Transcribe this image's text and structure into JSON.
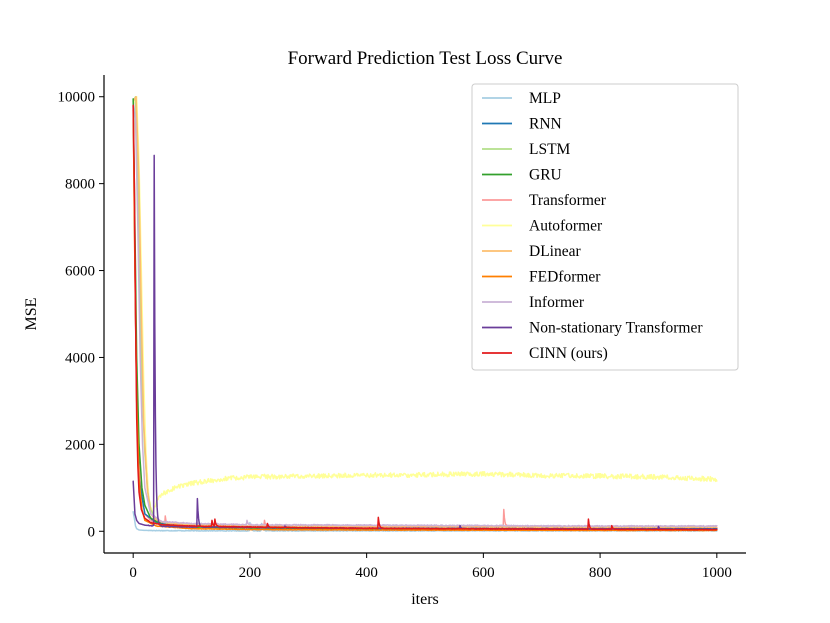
{
  "chart_data": {
    "type": "line",
    "title": "Forward Prediction Test Loss Curve",
    "xlabel": "iters",
    "ylabel": "MSE",
    "xlim": [
      -50,
      1050
    ],
    "ylim": [
      -500,
      10500
    ],
    "xticks": [
      0,
      200,
      400,
      600,
      800,
      1000
    ],
    "xtick_labels": [
      "0",
      "200",
      "400",
      "600",
      "800",
      "1000"
    ],
    "yticks": [
      0,
      2000,
      4000,
      6000,
      8000,
      10000
    ],
    "ytick_labels": [
      "0",
      "2000",
      "4000",
      "6000",
      "8000",
      "10000"
    ],
    "grid": false,
    "legend_position": "top-right",
    "series": [
      {
        "name": "MLP",
        "color": "#a6cee3",
        "points": [
          [
            0,
            450
          ],
          [
            2,
            300
          ],
          [
            4,
            120
          ],
          [
            6,
            60
          ],
          [
            10,
            30
          ],
          [
            20,
            20
          ],
          [
            50,
            15
          ],
          [
            100,
            12
          ],
          [
            200,
            10
          ],
          [
            300,
            10
          ],
          [
            400,
            10
          ],
          [
            500,
            10
          ],
          [
            600,
            10
          ],
          [
            700,
            10
          ],
          [
            800,
            10
          ],
          [
            900,
            10
          ],
          [
            1000,
            10
          ]
        ],
        "spikes": [
          [
            200,
            200
          ],
          [
            220,
            180
          ]
        ],
        "noise": 8,
        "z": 1
      },
      {
        "name": "RNN",
        "color": "#1f78b4",
        "points": [
          [
            0,
            9800
          ],
          [
            5,
            4000
          ],
          [
            10,
            1200
          ],
          [
            20,
            400
          ],
          [
            40,
            200
          ],
          [
            60,
            150
          ],
          [
            100,
            100
          ],
          [
            200,
            80
          ],
          [
            300,
            70
          ],
          [
            400,
            60
          ],
          [
            500,
            60
          ],
          [
            600,
            55
          ],
          [
            700,
            55
          ],
          [
            800,
            55
          ],
          [
            900,
            55
          ],
          [
            1000,
            55
          ]
        ],
        "spikes": [],
        "noise": 10,
        "z": 3
      },
      {
        "name": "LSTM",
        "color": "#b2df8a",
        "points": [
          [
            0,
            9900
          ],
          [
            4,
            10000
          ],
          [
            8,
            8000
          ],
          [
            12,
            5000
          ],
          [
            16,
            3000
          ],
          [
            20,
            1800
          ],
          [
            25,
            900
          ],
          [
            30,
            500
          ],
          [
            40,
            250
          ],
          [
            60,
            150
          ],
          [
            100,
            100
          ],
          [
            200,
            80
          ],
          [
            400,
            60
          ],
          [
            600,
            55
          ],
          [
            800,
            50
          ],
          [
            1000,
            50
          ]
        ],
        "spikes": [],
        "noise": 8,
        "z": 2
      },
      {
        "name": "GRU",
        "color": "#33a02c",
        "points": [
          [
            0,
            9950
          ],
          [
            3,
            7000
          ],
          [
            6,
            4000
          ],
          [
            10,
            2000
          ],
          [
            15,
            1000
          ],
          [
            20,
            600
          ],
          [
            30,
            300
          ],
          [
            50,
            150
          ],
          [
            100,
            100
          ],
          [
            200,
            80
          ],
          [
            400,
            60
          ],
          [
            600,
            55
          ],
          [
            800,
            50
          ],
          [
            1000,
            50
          ]
        ],
        "spikes": [],
        "noise": 8,
        "z": 3
      },
      {
        "name": "Transformer",
        "color": "#fb9a99",
        "points": [
          [
            0,
            9800
          ],
          [
            3,
            6000
          ],
          [
            6,
            3000
          ],
          [
            10,
            1500
          ],
          [
            15,
            800
          ],
          [
            20,
            400
          ],
          [
            30,
            250
          ],
          [
            40,
            200
          ],
          [
            60,
            150
          ],
          [
            100,
            140
          ],
          [
            200,
            120
          ],
          [
            400,
            110
          ],
          [
            600,
            110
          ],
          [
            800,
            100
          ],
          [
            1000,
            100
          ]
        ],
        "spikes": [
          [
            55,
            350
          ],
          [
            225,
            250
          ],
          [
            635,
            500
          ]
        ],
        "noise": 18,
        "z": 2
      },
      {
        "name": "Autoformer",
        "color": "#ffff99",
        "points": [
          [
            0,
            9800
          ],
          [
            6,
            10000
          ],
          [
            10,
            8500
          ],
          [
            14,
            6000
          ],
          [
            18,
            3500
          ],
          [
            22,
            1800
          ],
          [
            26,
            900
          ],
          [
            30,
            500
          ],
          [
            34,
            450
          ],
          [
            40,
            700
          ],
          [
            50,
            850
          ],
          [
            70,
            1000
          ],
          [
            100,
            1100
          ],
          [
            150,
            1200
          ],
          [
            200,
            1250
          ],
          [
            300,
            1270
          ],
          [
            400,
            1290
          ],
          [
            500,
            1300
          ],
          [
            600,
            1320
          ],
          [
            700,
            1280
          ],
          [
            800,
            1270
          ],
          [
            900,
            1250
          ],
          [
            950,
            1220
          ],
          [
            1000,
            1200
          ]
        ],
        "spikes": [],
        "noise": 55,
        "z": 1
      },
      {
        "name": "DLinear",
        "color": "#fdbf6f",
        "points": [
          [
            0,
            9900
          ],
          [
            5,
            10000
          ],
          [
            10,
            8000
          ],
          [
            14,
            5000
          ],
          [
            18,
            2500
          ],
          [
            24,
            1000
          ],
          [
            30,
            400
          ],
          [
            40,
            250
          ],
          [
            60,
            180
          ],
          [
            100,
            150
          ],
          [
            200,
            120
          ],
          [
            400,
            100
          ],
          [
            600,
            95
          ],
          [
            800,
            90
          ],
          [
            1000,
            90
          ]
        ],
        "spikes": [],
        "noise": 10,
        "z": 2
      },
      {
        "name": "FEDformer",
        "color": "#ff7f00",
        "points": [
          [
            0,
            9700
          ],
          [
            3,
            6000
          ],
          [
            6,
            3000
          ],
          [
            10,
            1200
          ],
          [
            15,
            500
          ],
          [
            20,
            250
          ],
          [
            40,
            120
          ],
          [
            100,
            60
          ],
          [
            200,
            40
          ],
          [
            400,
            30
          ],
          [
            600,
            25
          ],
          [
            800,
            20
          ],
          [
            1000,
            20
          ]
        ],
        "spikes": [],
        "noise": 5,
        "z": 3
      },
      {
        "name": "Informer",
        "color": "#cab2d6",
        "points": [
          [
            0,
            9900
          ],
          [
            4,
            9500
          ],
          [
            8,
            7000
          ],
          [
            12,
            4000
          ],
          [
            16,
            2000
          ],
          [
            20,
            1000
          ],
          [
            30,
            400
          ],
          [
            50,
            220
          ],
          [
            100,
            180
          ],
          [
            200,
            150
          ],
          [
            400,
            140
          ],
          [
            600,
            130
          ],
          [
            800,
            120
          ],
          [
            1000,
            120
          ]
        ],
        "spikes": [
          [
            195,
            250
          ]
        ],
        "noise": 12,
        "z": 2
      },
      {
        "name": "Non-stationary Transformer",
        "color": "#6a3d9a",
        "points": [
          [
            0,
            1150
          ],
          [
            3,
            400
          ],
          [
            6,
            250
          ],
          [
            10,
            180
          ],
          [
            20,
            140
          ],
          [
            30,
            130
          ],
          [
            40,
            120
          ],
          [
            60,
            110
          ],
          [
            100,
            100
          ],
          [
            200,
            90
          ],
          [
            400,
            70
          ],
          [
            600,
            60
          ],
          [
            800,
            55
          ],
          [
            1000,
            50
          ]
        ],
        "spikes": [
          [
            36,
            8650
          ],
          [
            110,
            750
          ],
          [
            260,
            120
          ],
          [
            560,
            130
          ],
          [
            900,
            110
          ]
        ],
        "noise": 10,
        "z": 4
      },
      {
        "name": "CINN (ours)",
        "color": "#e31a1c",
        "points": [
          [
            0,
            9800
          ],
          [
            2,
            8000
          ],
          [
            4,
            5000
          ],
          [
            6,
            2600
          ],
          [
            8,
            1500
          ],
          [
            10,
            900
          ],
          [
            14,
            500
          ],
          [
            20,
            300
          ],
          [
            30,
            200
          ],
          [
            50,
            150
          ],
          [
            100,
            120
          ],
          [
            200,
            100
          ],
          [
            300,
            80
          ],
          [
            400,
            70
          ],
          [
            500,
            60
          ],
          [
            600,
            55
          ],
          [
            700,
            50
          ],
          [
            800,
            45
          ],
          [
            900,
            40
          ],
          [
            1000,
            35
          ]
        ],
        "spikes": [
          [
            135,
            250
          ],
          [
            140,
            280
          ],
          [
            230,
            180
          ],
          [
            420,
            320
          ],
          [
            780,
            280
          ],
          [
            820,
            130
          ]
        ],
        "noise": 6,
        "z": 5
      }
    ]
  }
}
